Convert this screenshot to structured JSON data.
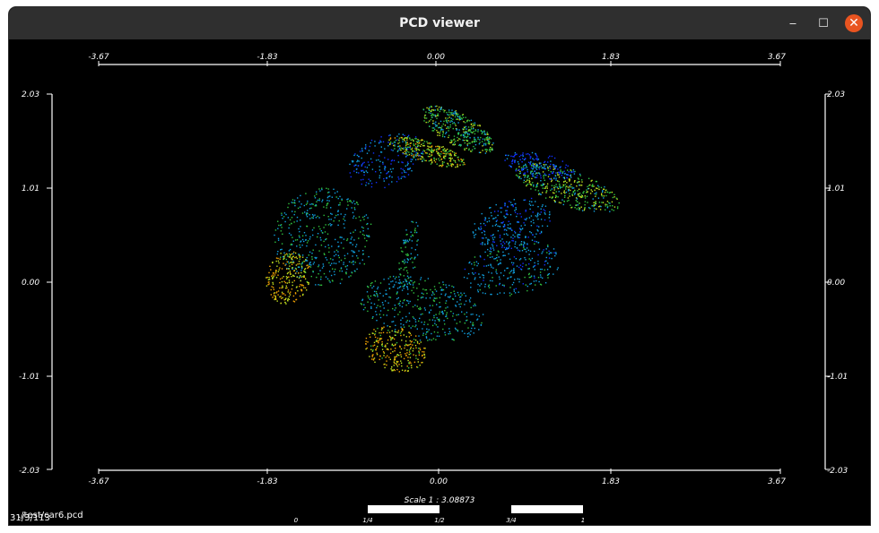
{
  "window": {
    "title": "PCD viewer",
    "minimize_icon": "minimize-icon",
    "maximize_icon": "maximize-icon",
    "close_icon": "close-icon",
    "close_color": "#e95420"
  },
  "axes": {
    "x_ticks": [
      "-3.67",
      "-1.83",
      "0.00",
      "1.83",
      "3.67"
    ],
    "y_ticks": [
      "2.03",
      "1.01",
      "0.00",
      "-1.01",
      "-2.03"
    ]
  },
  "scale": {
    "label": "Scale 1 : 3.08873",
    "ticks": [
      "0",
      "1/4",
      "1/2",
      "3/4",
      "1"
    ]
  },
  "status": {
    "file": "./test/car6.pcd",
    "overlap": "31/3/113"
  }
}
